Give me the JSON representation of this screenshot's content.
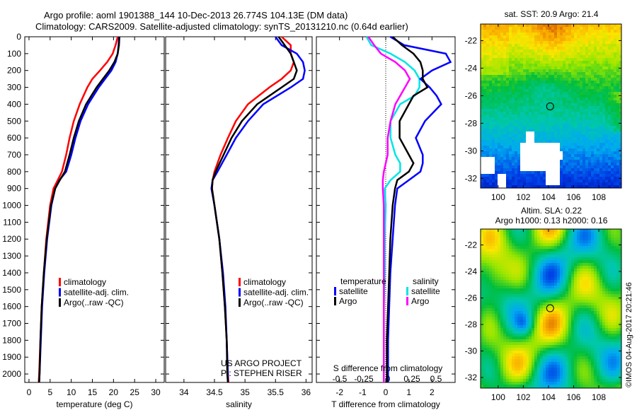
{
  "title_line1": "Argo profile: aoml 1901388_144 10-Dec-2013 26.774S 104.13E (DM data)",
  "title_line2": "Climatology: CARS2009. Satellite-adjusted climatology: synTS_20131210.nc (0.64d earlier)",
  "credit": "©IMOS 04-Aug-2017 20:21:46",
  "colors": {
    "climatology": "#ff0000",
    "satellite": "#0000ff",
    "argo": "#000000",
    "s_satellite": "#00e5e5",
    "s_argo": "#ff00ff"
  },
  "chart_data": [
    {
      "type": "line",
      "name": "temperature",
      "xlabel": "temperature (deg C)",
      "xlim": [
        -1,
        32
      ],
      "ylim": [
        2050,
        0
      ],
      "xticks": [
        "0",
        "5",
        "10",
        "15",
        "20",
        "25",
        "30"
      ],
      "xtick_values": [
        0,
        5,
        10,
        15,
        20,
        25,
        30
      ],
      "yticks": [
        "0",
        "100",
        "200",
        "300",
        "400",
        "500",
        "600",
        "700",
        "800",
        "900",
        "1000",
        "1100",
        "1200",
        "1300",
        "1400",
        "1500",
        "1600",
        "1700",
        "1800",
        "1900",
        "2000"
      ],
      "ytick_values": [
        0,
        100,
        200,
        300,
        400,
        500,
        600,
        700,
        800,
        900,
        1000,
        1100,
        1200,
        1300,
        1400,
        1500,
        1600,
        1700,
        1800,
        1900,
        2000
      ],
      "depth": [
        0,
        50,
        100,
        150,
        200,
        250,
        300,
        400,
        500,
        600,
        700,
        800,
        850,
        900,
        1000,
        1200,
        1400,
        1600,
        1800,
        2000,
        2050
      ],
      "series": [
        {
          "name": "climatology",
          "color": "#ff0000",
          "values": [
            21.0,
            20.5,
            19.8,
            18.5,
            16.8,
            15.0,
            13.8,
            12.0,
            10.6,
            9.6,
            8.8,
            7.8,
            6.8,
            5.8,
            5.0,
            4.1,
            3.5,
            3.0,
            2.7,
            2.4,
            2.3
          ]
        },
        {
          "name": "satellite-adj. clim.",
          "color": "#0000ff",
          "values": [
            21.3,
            21.2,
            21.0,
            20.5,
            19.5,
            18.0,
            16.5,
            14.0,
            12.2,
            11.0,
            10.0,
            8.8,
            7.2,
            6.2,
            5.3,
            4.3,
            3.6,
            3.1,
            2.8,
            2.5,
            2.4
          ]
        },
        {
          "name": "Argo(..raw -QC)",
          "color": "#000000",
          "values": [
            21.4,
            21.3,
            21.0,
            20.2,
            19.0,
            17.5,
            16.0,
            13.5,
            11.8,
            10.6,
            9.6,
            8.5,
            7.3,
            6.2,
            5.2,
            4.2,
            3.5,
            3.0,
            2.7,
            2.5,
            2.4
          ]
        }
      ],
      "legend": [
        "climatology",
        "satellite-adj. clim.",
        "Argo(..raw -QC)"
      ]
    },
    {
      "type": "line",
      "name": "salinity",
      "xlabel": "salinity",
      "xlim": [
        33.7,
        36.1
      ],
      "ylim": [
        2050,
        0
      ],
      "xticks": [
        "34",
        "34.5",
        "35",
        "35.5",
        "36"
      ],
      "xtick_values": [
        34,
        34.5,
        35,
        35.5,
        36
      ],
      "depth": [
        0,
        50,
        100,
        150,
        200,
        250,
        300,
        400,
        500,
        600,
        700,
        800,
        850,
        900,
        1000,
        1200,
        1400,
        1600,
        1800,
        2000,
        2050
      ],
      "series": [
        {
          "name": "climatology",
          "color": "#ff0000",
          "values": [
            35.6,
            35.75,
            35.75,
            35.8,
            35.75,
            35.6,
            35.4,
            35.05,
            34.85,
            34.72,
            34.6,
            34.5,
            34.47,
            34.46,
            34.5,
            34.58,
            34.63,
            34.67,
            34.7,
            34.72,
            34.73
          ]
        },
        {
          "name": "satellite-adj. clim.",
          "color": "#0000ff",
          "values": [
            35.5,
            35.6,
            35.85,
            35.95,
            35.98,
            35.95,
            35.75,
            35.3,
            35.05,
            34.85,
            34.7,
            34.55,
            34.47,
            34.45,
            34.5,
            34.58,
            34.64,
            34.68,
            34.7,
            34.72,
            34.72
          ]
        },
        {
          "name": "Argo(..raw -QC)",
          "color": "#000000",
          "values": [
            35.55,
            35.65,
            35.75,
            35.8,
            35.85,
            35.8,
            35.6,
            35.2,
            34.95,
            34.78,
            34.65,
            34.52,
            34.47,
            34.46,
            34.5,
            34.58,
            34.63,
            34.67,
            34.7,
            34.71,
            34.72
          ]
        }
      ],
      "legend": [
        "climatology",
        "satellite-adj. clim.",
        "Argo(..raw -QC)"
      ],
      "annotation": [
        "US ARGO PROJECT",
        "PI: STEPHEN RISER"
      ]
    },
    {
      "type": "line",
      "name": "differences",
      "xlabel": "T difference from climatology",
      "xlabel_top": "S difference from climatology",
      "xlim": [
        -3,
        3
      ],
      "ylim": [
        2050,
        0
      ],
      "xticks": [
        "-2",
        "-1",
        "0",
        "1",
        "2"
      ],
      "xtick_values": [
        -2,
        -1,
        0,
        1,
        2
      ],
      "s_xticks": [
        "-0.5",
        "-0.25",
        "0",
        "0.25",
        "0.5"
      ],
      "s_xtick_values": [
        -0.5,
        -0.25,
        0,
        0.25,
        0.5
      ],
      "depth": [
        0,
        50,
        100,
        150,
        200,
        250,
        300,
        350,
        400,
        500,
        600,
        700,
        750,
        800,
        850,
        900,
        1000,
        1200,
        1400,
        1600,
        1800,
        2000,
        2050
      ],
      "series": [
        {
          "name": "temperature satellite",
          "group": "temperature",
          "label": "satellite",
          "color": "#0000ff",
          "values": [
            0.2,
            0.8,
            2.6,
            2.8,
            2.0,
            1.5,
            1.9,
            2.2,
            2.4,
            1.7,
            1.3,
            1.6,
            1.6,
            1.5,
            1.0,
            0.5,
            0.4,
            0.3,
            0.2,
            0.15,
            0.1,
            0.1,
            0.1
          ]
        },
        {
          "name": "temperature Argo",
          "group": "temperature",
          "label": "Argo",
          "color": "#000000",
          "values": [
            0.3,
            0.7,
            1.2,
            1.5,
            1.6,
            1.6,
            1.8,
            1.2,
            1.0,
            0.6,
            0.6,
            1.0,
            1.2,
            1.0,
            0.5,
            0.4,
            0.3,
            0.2,
            0.15,
            0.1,
            0.05,
            0.05,
            0.05
          ]
        }
      ],
      "s_series": [
        {
          "name": "salinity satellite",
          "group": "salinity",
          "label": "satellite",
          "color": "#00e5e5",
          "values": [
            -0.2,
            -0.15,
            0.05,
            0.2,
            0.3,
            0.35,
            0.35,
            0.3,
            0.15,
            0.05,
            0.05,
            0.1,
            0.15,
            0.15,
            0.05,
            -0.01,
            0.0,
            -0.01,
            -0.01,
            -0.02,
            -0.02,
            -0.02,
            -0.02
          ]
        },
        {
          "name": "salinity Argo",
          "group": "salinity",
          "label": "Argo",
          "color": "#ff00ff",
          "values": [
            -0.18,
            -0.12,
            -0.05,
            0.1,
            0.2,
            0.25,
            0.2,
            0.15,
            0.1,
            0.05,
            0.02,
            0.02,
            0.0,
            -0.02,
            -0.03,
            -0.03,
            -0.02,
            -0.02,
            -0.02,
            -0.02,
            -0.02,
            -0.02,
            -0.02
          ]
        }
      ],
      "legend_temperature_title": "temperature",
      "legend_salinity_title": "salinity",
      "legend_satellite": "satellite",
      "legend_argo": "Argo"
    },
    {
      "type": "heatmap",
      "name": "sst-map",
      "title": "sat. SST: 20.9 Argo: 21.4",
      "xticks": [
        "100",
        "102",
        "104",
        "106",
        "108"
      ],
      "xtick_values": [
        100,
        102,
        104,
        106,
        108
      ],
      "yticks": [
        "-22",
        "-24",
        "-26",
        "-28",
        "-30",
        "-32"
      ],
      "ytick_values": [
        -22,
        -24,
        -26,
        -28,
        -30,
        -32
      ],
      "xlim": [
        98.6,
        109.8
      ],
      "ylim": [
        -32.7,
        -20.8
      ],
      "marker": [
        104.13,
        -26.774
      ]
    },
    {
      "type": "heatmap",
      "name": "sla-map",
      "title_line1": "Altim. SLA: 0.22",
      "title_line2": "Argo h1000: 0.13 h2000: 0.16",
      "xticks": [
        "100",
        "102",
        "104",
        "106",
        "108"
      ],
      "xtick_values": [
        100,
        102,
        104,
        106,
        108
      ],
      "yticks": [
        "-22",
        "-24",
        "-26",
        "-28",
        "-30",
        "-32"
      ],
      "ytick_values": [
        -22,
        -24,
        -26,
        -28,
        -30,
        -32
      ],
      "xlim": [
        98.6,
        109.8
      ],
      "ylim": [
        -32.8,
        -20.8
      ],
      "marker": [
        104.13,
        -26.774
      ]
    }
  ]
}
